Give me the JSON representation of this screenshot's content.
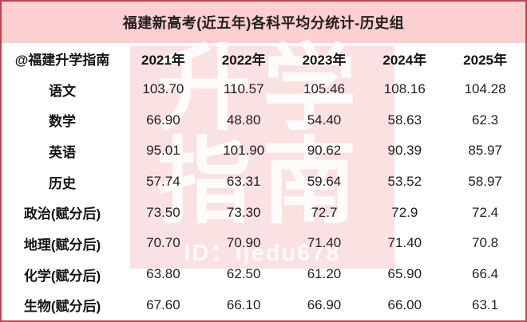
{
  "title": "福建新高考(近五年)各科平均分统计-历史组",
  "table": {
    "corner_label": "@福建升学指南",
    "years": [
      "2021年",
      "2022年",
      "2023年",
      "2024年",
      "2025年"
    ],
    "rows": [
      {
        "subject": "语文",
        "values": [
          "103.70",
          "110.57",
          "105.46",
          "108.16",
          "104.28"
        ]
      },
      {
        "subject": "数学",
        "values": [
          "66.90",
          "48.80",
          "54.40",
          "58.63",
          "62.3"
        ]
      },
      {
        "subject": "英语",
        "values": [
          "95.01",
          "101.90",
          "90.62",
          "90.39",
          "85.97"
        ]
      },
      {
        "subject": "历史",
        "values": [
          "57.74",
          "63.31",
          "59.64",
          "53.52",
          "58.97"
        ]
      },
      {
        "subject": "政治(赋分后)",
        "values": [
          "73.50",
          "73.30",
          "72.7",
          "72.9",
          "72.4"
        ]
      },
      {
        "subject": "地理(赋分后)",
        "values": [
          "70.70",
          "70.90",
          "71.40",
          "71.40",
          "70.8"
        ]
      },
      {
        "subject": "化学(赋分后)",
        "values": [
          "63.80",
          "62.50",
          "61.20",
          "65.90",
          "66.4"
        ]
      },
      {
        "subject": "生物(赋分后)",
        "values": [
          "67.60",
          "66.10",
          "66.90",
          "66.00",
          "63.1"
        ]
      }
    ]
  },
  "watermark": {
    "line1": "升学",
    "line2": "指南",
    "id_text": "ID：ijedu678"
  },
  "colors": {
    "frame_border": "#b5484f",
    "title_background": "#fccfd1",
    "title_text": "#241e1e",
    "watermark_background": "#fae1e2",
    "watermark_text": "#ffffff",
    "body_text": "#1f1f1f"
  },
  "chart_data": {
    "type": "table",
    "title": "福建新高考(近五年)各科平均分统计-历史组",
    "categories": [
      "2021年",
      "2022年",
      "2023年",
      "2024年",
      "2025年"
    ],
    "series": [
      {
        "name": "语文",
        "values": [
          103.7,
          110.57,
          105.46,
          108.16,
          104.28
        ]
      },
      {
        "name": "数学",
        "values": [
          66.9,
          48.8,
          54.4,
          58.63,
          62.3
        ]
      },
      {
        "name": "英语",
        "values": [
          95.01,
          101.9,
          90.62,
          90.39,
          85.97
        ]
      },
      {
        "name": "历史",
        "values": [
          57.74,
          63.31,
          59.64,
          53.52,
          58.97
        ]
      },
      {
        "name": "政治(赋分后)",
        "values": [
          73.5,
          73.3,
          72.7,
          72.9,
          72.4
        ]
      },
      {
        "name": "地理(赋分后)",
        "values": [
          70.7,
          70.9,
          71.4,
          71.4,
          70.8
        ]
      },
      {
        "name": "化学(赋分后)",
        "values": [
          63.8,
          62.5,
          61.2,
          65.9,
          66.4
        ]
      },
      {
        "name": "生物(赋分后)",
        "values": [
          67.6,
          66.1,
          66.9,
          66.0,
          63.1
        ]
      }
    ],
    "legend_position": "none",
    "grid": false
  }
}
